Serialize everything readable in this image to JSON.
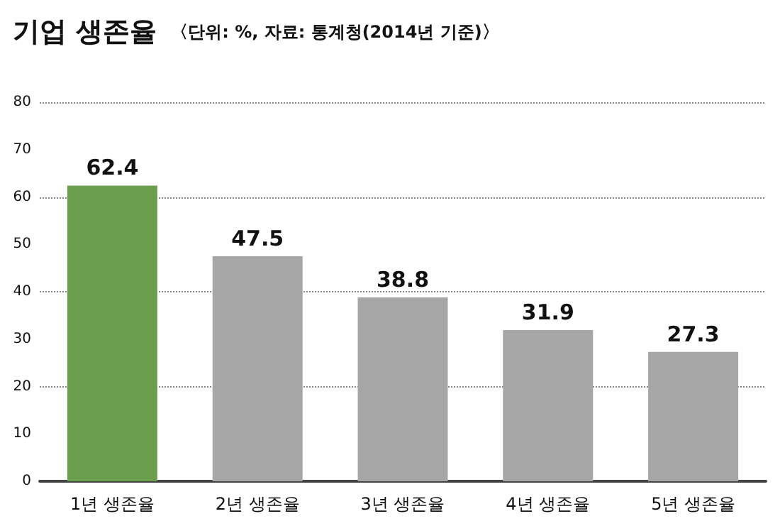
{
  "chart_data": {
    "type": "bar",
    "title": "기업 생존율",
    "subtitle": "〈단위: %, 자료: 통계청(2014년 기준)〉",
    "categories": [
      "1년 생존율",
      "2년 생존율",
      "3년 생존율",
      "4년 생존율",
      "5년 생존율"
    ],
    "values": [
      62.4,
      47.5,
      38.8,
      31.9,
      27.3
    ],
    "colors": [
      "#6a9e4c",
      "#a6a6a6",
      "#a6a6a6",
      "#a6a6a6",
      "#a6a6a6"
    ],
    "ylim": [
      0,
      80
    ],
    "yticks": [
      0,
      10,
      20,
      30,
      40,
      50,
      60,
      70,
      80
    ],
    "grid": "y",
    "data_labels": true
  }
}
